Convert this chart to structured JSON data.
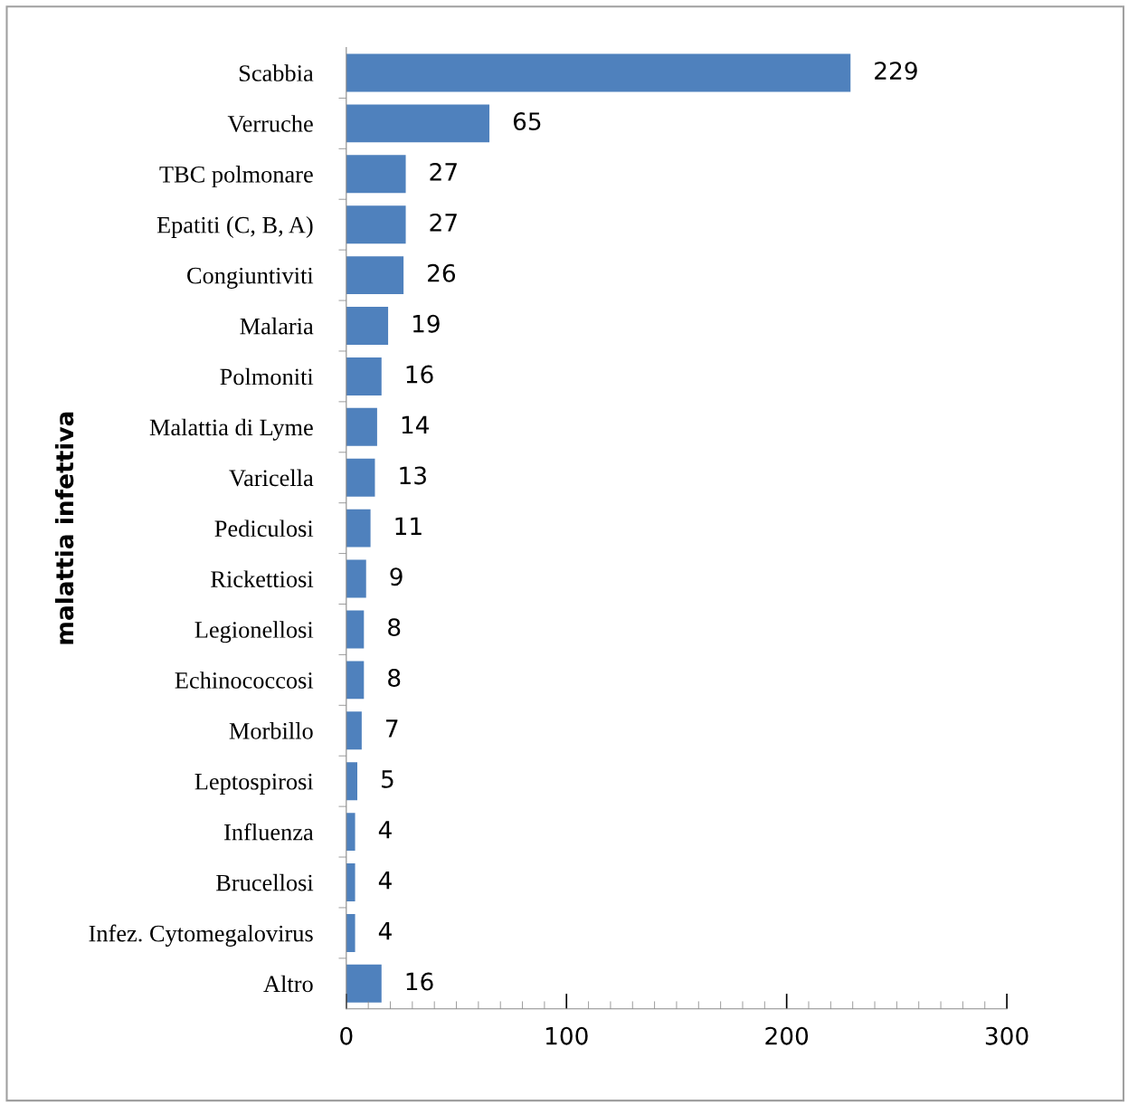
{
  "chart_data": {
    "type": "bar",
    "orientation": "horizontal",
    "ylabel": "malattia infettiva",
    "categories": [
      "Scabbia",
      "Verruche",
      "TBC polmonare",
      "Epatiti (C, B, A)",
      "Congiuntiviti",
      "Malaria",
      "Polmoniti",
      "Malattia di Lyme",
      "Varicella",
      "Pediculosi",
      "Rickettiosi",
      "Legionellosi",
      "Echinococcosi",
      "Morbillo",
      "Leptospirosi",
      "Influenza",
      "Brucellosi",
      "Infez. Cytomegalovirus",
      "Altro"
    ],
    "values": [
      229,
      65,
      27,
      27,
      26,
      19,
      16,
      14,
      13,
      11,
      9,
      8,
      8,
      7,
      5,
      4,
      4,
      4,
      16
    ],
    "color": "#4f81bd",
    "data_labels": true,
    "xlim": [
      0,
      300
    ],
    "xticks": [
      0,
      100,
      200,
      300
    ],
    "grid": false,
    "legend": false
  }
}
